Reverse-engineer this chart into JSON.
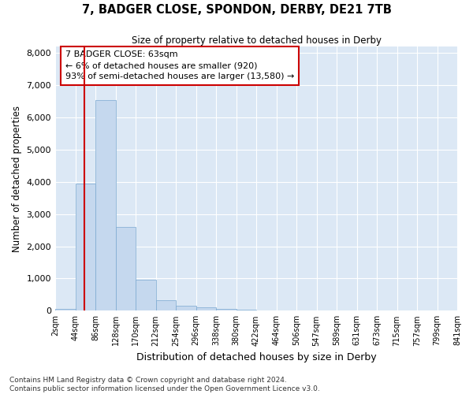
{
  "title": "7, BADGER CLOSE, SPONDON, DERBY, DE21 7TB",
  "subtitle": "Size of property relative to detached houses in Derby",
  "xlabel": "Distribution of detached houses by size in Derby",
  "ylabel": "Number of detached properties",
  "bar_color": "#c5d8ee",
  "bar_edge_color": "#7aa8d0",
  "background_color": "#dce8f5",
  "grid_color": "#ffffff",
  "property_line_color": "#cc0000",
  "property_size_bin": 1,
  "annotation_text": "7 BADGER CLOSE: 63sqm\n← 6% of detached houses are smaller (920)\n93% of semi-detached houses are larger (13,580) →",
  "bin_edges": [
    0,
    1,
    2,
    3,
    4,
    5,
    6,
    7,
    8,
    9,
    10,
    11,
    12,
    13,
    14,
    15,
    16,
    17,
    18,
    19,
    20
  ],
  "tick_labels": [
    "2sqm",
    "44sqm",
    "86sqm",
    "128sqm",
    "170sqm",
    "212sqm",
    "254sqm",
    "296sqm",
    "338sqm",
    "380sqm",
    "422sqm",
    "464sqm",
    "506sqm",
    "547sqm",
    "589sqm",
    "631sqm",
    "673sqm",
    "715sqm",
    "757sqm",
    "799sqm",
    "841sqm"
  ],
  "values": [
    60,
    3950,
    6550,
    2600,
    950,
    330,
    145,
    100,
    60,
    40,
    10,
    5,
    3,
    0,
    0,
    0,
    0,
    0,
    0,
    0
  ],
  "ylim": [
    0,
    8200
  ],
  "yticks": [
    0,
    1000,
    2000,
    3000,
    4000,
    5000,
    6000,
    7000,
    8000
  ],
  "footer": "Contains HM Land Registry data © Crown copyright and database right 2024.\nContains public sector information licensed under the Open Government Licence v3.0."
}
